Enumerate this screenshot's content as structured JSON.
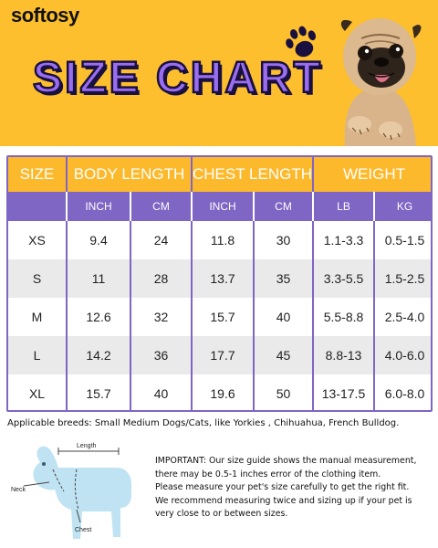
{
  "brand": "softosy",
  "title": "SIZE CHART",
  "table": {
    "headers": [
      "SIZE",
      "BODY LENGTH",
      "CHEST LENGTH",
      "WEIGHT"
    ],
    "subheaders": [
      "INCH",
      "CM",
      "INCH",
      "CM",
      "LB",
      "KG"
    ],
    "rows": [
      [
        "XS",
        "9.4",
        "24",
        "11.8",
        "30",
        "1.1-3.3",
        "0.5-1.5"
      ],
      [
        "S",
        "11",
        "28",
        "13.7",
        "35",
        "3.3-5.5",
        "1.5-2.5"
      ],
      [
        "M",
        "12.6",
        "32",
        "15.7",
        "40",
        "5.5-8.8",
        "2.5-4.0"
      ],
      [
        "L",
        "14.2",
        "36",
        "17.7",
        "45",
        "8.8-13",
        "4.0-6.0"
      ],
      [
        "XL",
        "15.7",
        "40",
        "19.6",
        "50",
        "13-17.5",
        "6.0-8.0"
      ]
    ]
  },
  "breeds": "Applicable breeds: Small Medium Dogs/Cats, like Yorkies , Chihuahua, French Bulldog.",
  "diagram": {
    "length_label": "Length",
    "neck_label": "Neck",
    "chest_label": "Chest"
  },
  "note_lines": [
    "IMPORTANT: Our size guide shows the manual measurement,",
    "there may be 0.5-1 inches error of the clothing item.",
    "Please measure your pet's size carefully to get the right fit.",
    "We recommend measuring twice and sizing up if your pet is",
    "very close to or between sizes."
  ],
  "colors": {
    "banner_yellow": "#fdbf2d",
    "title_purple": "#9a6ef0",
    "header_orange": "#fdb92c",
    "subheader_purple": "#7f65c4",
    "row_gray": "#eaeaea",
    "dog_diagram_blue": "#bfe3f3"
  },
  "icons": [
    "paw-print-icon",
    "pug-photo",
    "dog-measurement-diagram"
  ]
}
